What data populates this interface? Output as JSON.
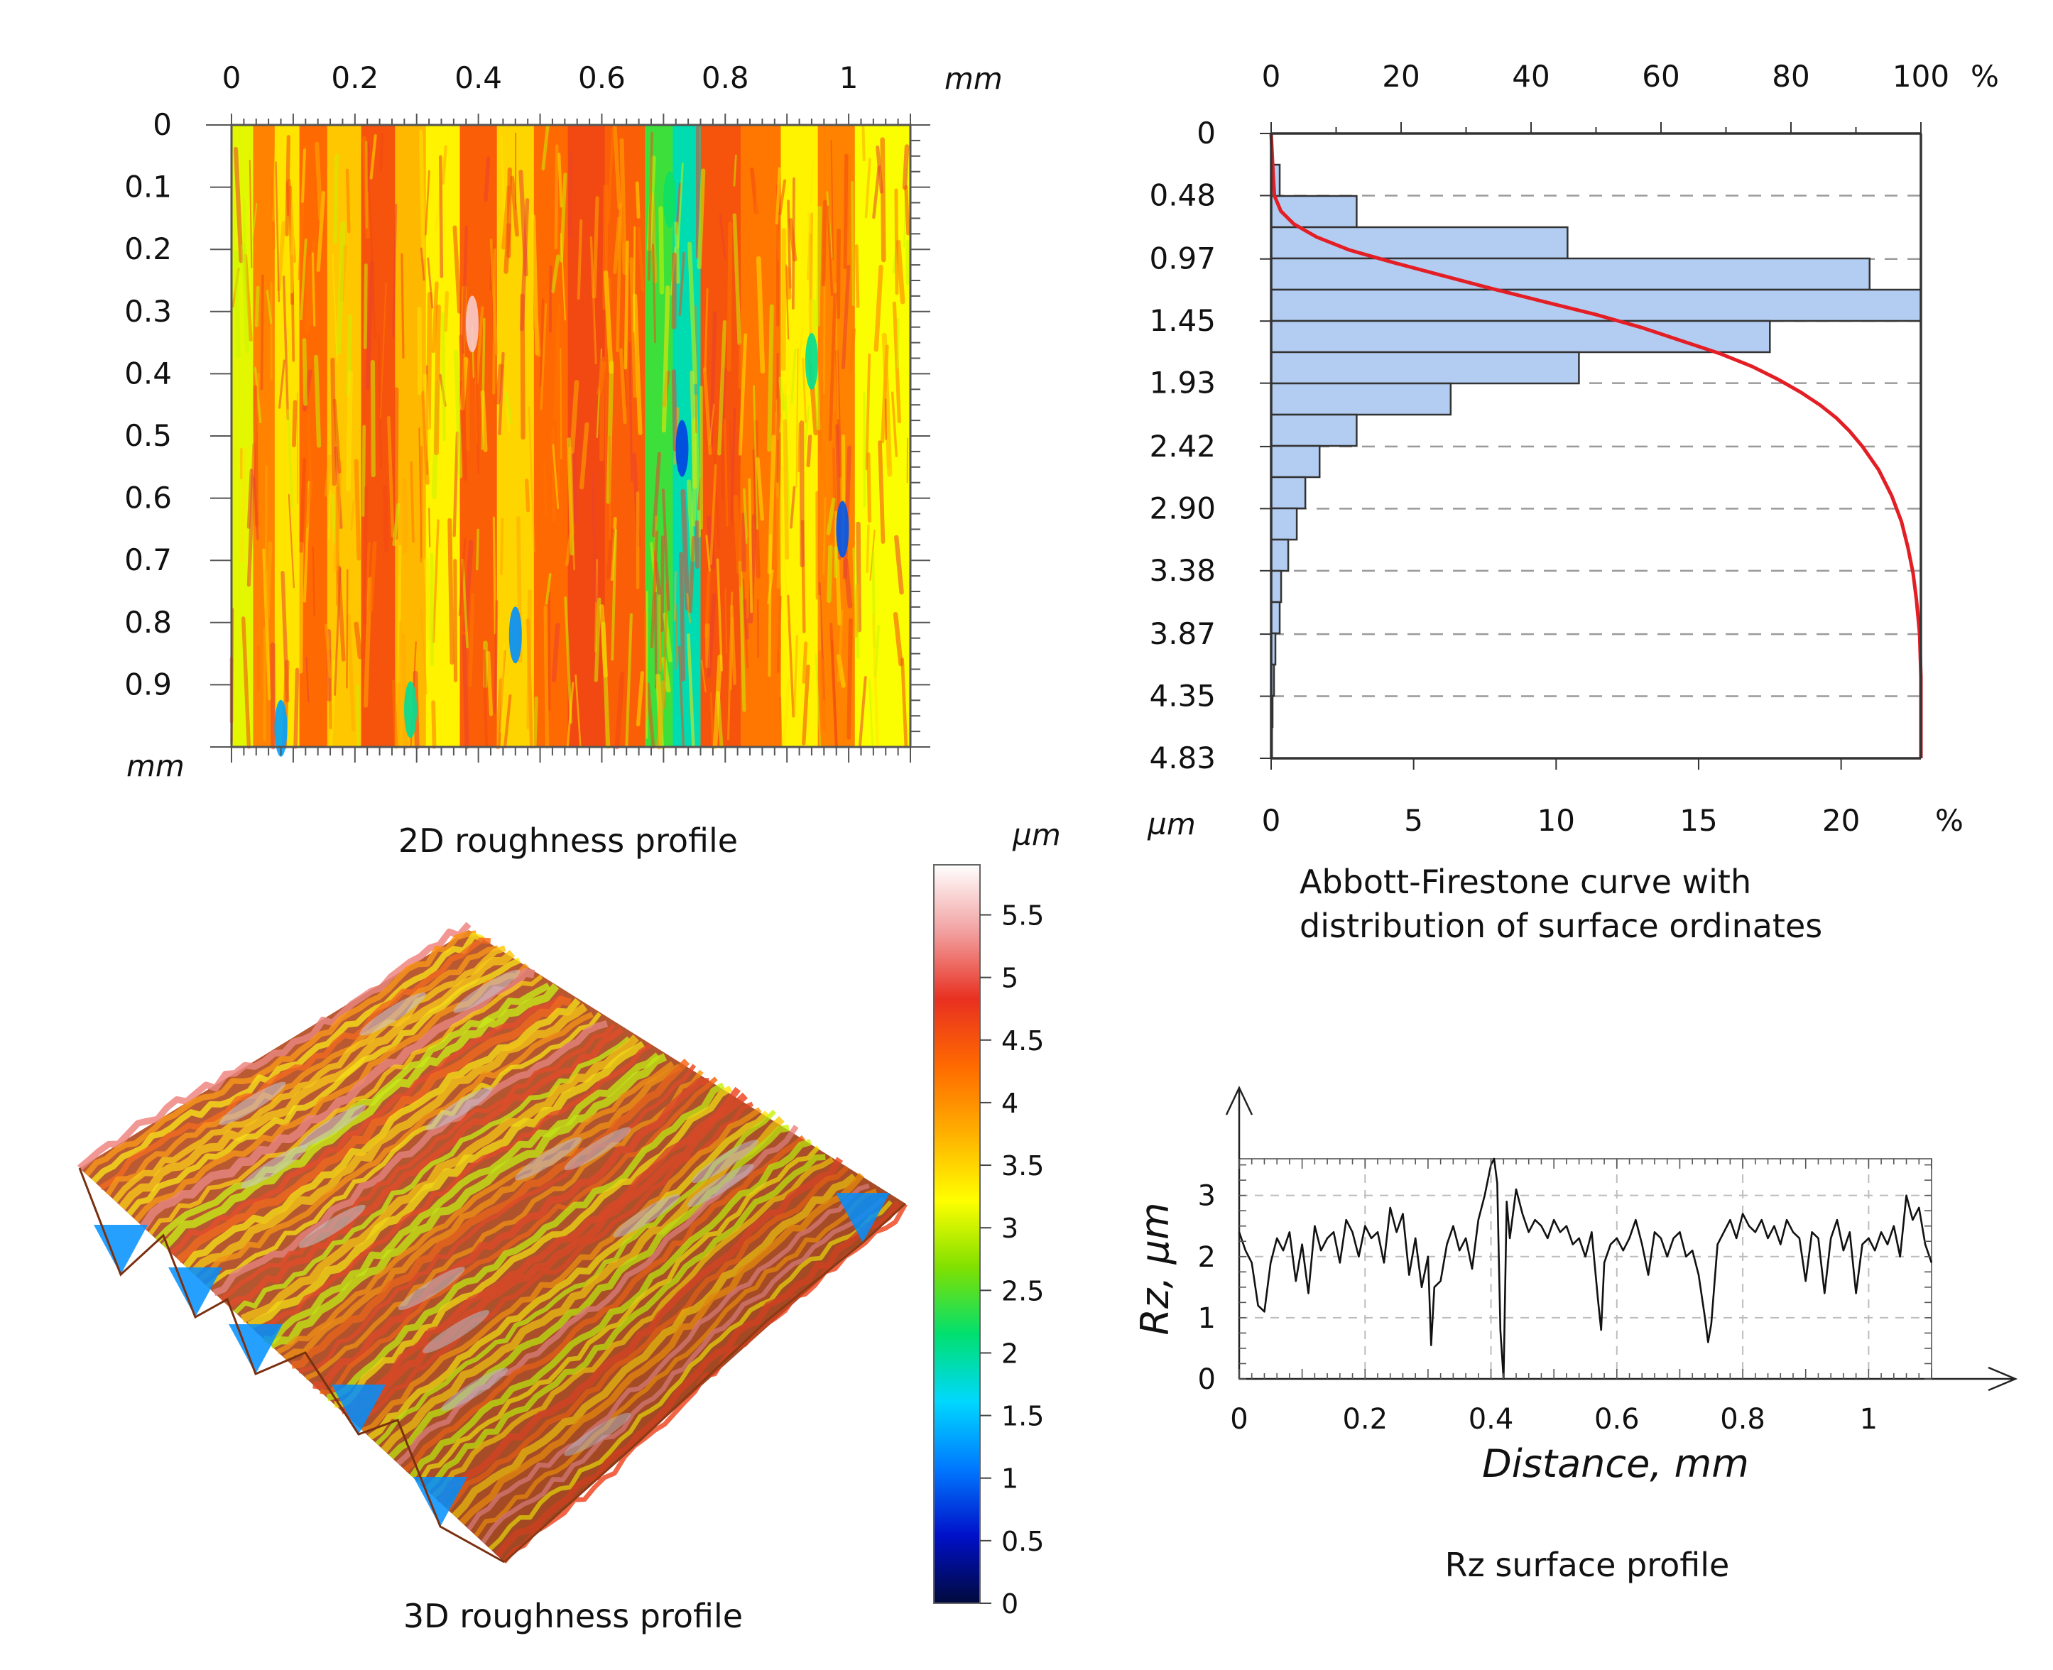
{
  "panels": {
    "map2d": {
      "caption": "2D roughness profile"
    },
    "surf3d": {
      "caption": "3D roughness profile"
    },
    "abbott": {
      "caption_line1": "Abbott-Firestone curve with",
      "caption_line2": "distribution of surface ordinates"
    },
    "rz": {
      "caption": "Rz surface profile"
    }
  },
  "colormap": {
    "stops": [
      "#000a3c",
      "#0010c8",
      "#0078ff",
      "#00d8ff",
      "#00e070",
      "#80e000",
      "#ffff00",
      "#ffb000",
      "#ff6a00",
      "#e83020",
      "#f2a0a0",
      "#ffffff"
    ],
    "background_hex": "#f06422"
  },
  "chart_data": [
    {
      "id": "map2d",
      "type": "heatmap",
      "title": "2D roughness profile",
      "x_unit": "mm",
      "y_unit": "mm",
      "x_range": [
        0,
        1.1
      ],
      "y_range": [
        0,
        1.0
      ],
      "x_ticks": [
        "0",
        "0.2",
        "0.4",
        "0.6",
        "0.8",
        "1"
      ],
      "x_tick_values": [
        0,
        0.2,
        0.4,
        0.6,
        0.8,
        1.0
      ],
      "y_ticks": [
        "0",
        "0.1",
        "0.2",
        "0.3",
        "0.4",
        "0.5",
        "0.6",
        "0.7",
        "0.8",
        "0.9"
      ],
      "y_tick_values": [
        0,
        0.1,
        0.2,
        0.3,
        0.4,
        0.5,
        0.6,
        0.7,
        0.8,
        0.9
      ],
      "z_unit": "µm",
      "z_range": [
        0,
        5.9
      ],
      "colorbar_ticks": [
        "0",
        "0.5",
        "1",
        "1.5",
        "2",
        "2.5",
        "3",
        "3.5",
        "4",
        "4.5",
        "5",
        "5.5"
      ],
      "colorbar_values": [
        0,
        0.5,
        1,
        1.5,
        2,
        2.5,
        3,
        3.5,
        4,
        4.5,
        5,
        5.5
      ],
      "bands": [
        {
          "x": 0.02,
          "z": 3.1
        },
        {
          "x": 0.05,
          "z": 4.1
        },
        {
          "x": 0.09,
          "z": 3.4
        },
        {
          "x": 0.13,
          "z": 4.3
        },
        {
          "x": 0.18,
          "z": 3.6
        },
        {
          "x": 0.24,
          "z": 4.5
        },
        {
          "x": 0.29,
          "z": 3.7
        },
        {
          "x": 0.34,
          "z": 3.3
        },
        {
          "x": 0.4,
          "z": 4.4
        },
        {
          "x": 0.46,
          "z": 3.5
        },
        {
          "x": 0.52,
          "z": 4.3
        },
        {
          "x": 0.57,
          "z": 4.6
        },
        {
          "x": 0.64,
          "z": 4.4
        },
        {
          "x": 0.7,
          "z": 2.4
        },
        {
          "x": 0.73,
          "z": 1.9
        },
        {
          "x": 0.79,
          "z": 4.5
        },
        {
          "x": 0.86,
          "z": 4.2
        },
        {
          "x": 0.92,
          "z": 3.3
        },
        {
          "x": 0.98,
          "z": 4.1
        },
        {
          "x": 1.04,
          "z": 3.2
        }
      ],
      "pits": [
        {
          "x": 0.73,
          "y": 0.52,
          "z": 0.8
        },
        {
          "x": 0.99,
          "y": 0.65,
          "z": 0.9
        },
        {
          "x": 0.46,
          "y": 0.82,
          "z": 1.2
        },
        {
          "x": 0.08,
          "y": 0.97,
          "z": 1.3
        },
        {
          "x": 0.29,
          "y": 0.94,
          "z": 2.0
        },
        {
          "x": 0.39,
          "y": 0.32,
          "z": 5.6
        },
        {
          "x": 0.71,
          "y": 0.12,
          "z": 2.2
        },
        {
          "x": 0.94,
          "y": 0.38,
          "z": 2.0
        }
      ]
    },
    {
      "id": "surf3d",
      "type": "heatmap",
      "title": "3D roughness profile",
      "z_unit": "µm",
      "colorbar_ticks": [
        "0",
        "0.5",
        "1",
        "1.5",
        "2",
        "2.5",
        "3",
        "3.5",
        "4",
        "4.5",
        "5",
        "5.5"
      ],
      "colorbar_values": [
        0,
        0.5,
        1,
        1.5,
        2,
        2.5,
        3,
        3.5,
        4,
        4.5,
        5,
        5.5
      ],
      "z_range": [
        0,
        5.9
      ]
    },
    {
      "id": "abbott",
      "type": "bar",
      "orientation": "horizontal",
      "title": "Abbott-Firestone curve with distribution of surface ordinates",
      "ylabel": "µm",
      "y_ticks": [
        "0",
        "0.48",
        "0.97",
        "1.45",
        "1.93",
        "2.42",
        "2.90",
        "3.38",
        "3.87",
        "4.35",
        "4.83"
      ],
      "y_tick_values": [
        0,
        0.48,
        0.97,
        1.45,
        1.93,
        2.42,
        2.9,
        3.38,
        3.87,
        4.35,
        4.83
      ],
      "ylim": [
        0,
        4.83
      ],
      "bottom_axis_unit": "%",
      "bottom_ticks": [
        "0",
        "5",
        "10",
        "15",
        "20"
      ],
      "bottom_tick_values": [
        0,
        5,
        10,
        15,
        20
      ],
      "bottom_range": [
        0,
        22.8
      ],
      "top_axis_unit": "%",
      "top_ticks": [
        "0",
        "20",
        "40",
        "60",
        "80",
        "100"
      ],
      "top_tick_values": [
        0,
        20,
        40,
        60,
        80,
        100
      ],
      "top_range": [
        0,
        100
      ],
      "bin_width": 0.2415,
      "bins_start": [
        0.2415,
        0.483,
        0.7245,
        0.966,
        1.2075,
        1.449,
        1.6905,
        1.932,
        2.1735,
        2.415,
        2.6565,
        2.898,
        3.1395,
        3.381,
        3.6225,
        3.864,
        4.1055,
        4.347,
        4.5885
      ],
      "values": [
        0.3,
        3.0,
        10.4,
        21.0,
        22.8,
        17.5,
        10.8,
        6.3,
        3.0,
        1.7,
        1.2,
        0.9,
        0.6,
        0.35,
        0.3,
        0.15,
        0.1,
        0.05,
        0.03
      ],
      "curve_name": "Abbott-Firestone curve",
      "curve_color": "#e31e24",
      "bar_color": "#b3cdf2",
      "curve": {
        "depth": [
          0,
          0.3,
          0.48,
          0.6,
          0.7,
          0.8,
          0.9,
          1.0,
          1.1,
          1.2,
          1.3,
          1.4,
          1.5,
          1.6,
          1.7,
          1.8,
          1.9,
          2.0,
          2.1,
          2.2,
          2.3,
          2.42,
          2.6,
          2.8,
          3.0,
          3.2,
          3.4,
          3.6,
          3.87,
          4.2,
          4.5,
          4.83
        ],
        "percent": [
          0,
          0.3,
          0.5,
          1.5,
          3.5,
          7,
          12,
          19,
          26.5,
          34,
          42,
          50,
          57,
          63,
          69,
          74,
          78,
          81.5,
          84.5,
          87,
          89,
          91,
          93.5,
          95.5,
          97,
          98,
          98.8,
          99.3,
          99.8,
          100,
          100,
          100
        ]
      }
    },
    {
      "id": "rz",
      "type": "line",
      "title": "Rz surface profile",
      "xlabel": "Distance, mm",
      "ylabel": "Rz, μm",
      "xlim": [
        0,
        1.1
      ],
      "ylim": [
        0,
        3.6
      ],
      "x_ticks": [
        "0",
        "0.2",
        "0.4",
        "0.6",
        "0.8",
        "1"
      ],
      "x_tick_values": [
        0,
        0.2,
        0.4,
        0.6,
        0.8,
        1.0
      ],
      "y_ticks": [
        "0",
        "1",
        "2",
        "3"
      ],
      "y_tick_values": [
        0,
        1,
        2,
        3
      ],
      "grid": true,
      "series": [
        {
          "name": "Rz",
          "x": [
            0.0,
            0.01,
            0.02,
            0.03,
            0.04,
            0.05,
            0.06,
            0.07,
            0.08,
            0.09,
            0.1,
            0.11,
            0.12,
            0.13,
            0.14,
            0.15,
            0.16,
            0.17,
            0.18,
            0.19,
            0.2,
            0.21,
            0.22,
            0.23,
            0.24,
            0.25,
            0.26,
            0.27,
            0.28,
            0.29,
            0.3,
            0.305,
            0.31,
            0.32,
            0.33,
            0.34,
            0.35,
            0.36,
            0.37,
            0.38,
            0.39,
            0.4,
            0.405,
            0.41,
            0.415,
            0.42,
            0.425,
            0.43,
            0.44,
            0.45,
            0.46,
            0.47,
            0.48,
            0.49,
            0.5,
            0.51,
            0.52,
            0.53,
            0.54,
            0.55,
            0.56,
            0.57,
            0.575,
            0.58,
            0.59,
            0.6,
            0.61,
            0.62,
            0.63,
            0.64,
            0.65,
            0.66,
            0.67,
            0.68,
            0.69,
            0.7,
            0.71,
            0.72,
            0.73,
            0.74,
            0.745,
            0.75,
            0.76,
            0.77,
            0.78,
            0.79,
            0.8,
            0.81,
            0.82,
            0.83,
            0.84,
            0.85,
            0.86,
            0.87,
            0.88,
            0.89,
            0.9,
            0.91,
            0.92,
            0.93,
            0.94,
            0.95,
            0.96,
            0.97,
            0.98,
            0.99,
            1.0,
            1.01,
            1.02,
            1.03,
            1.04,
            1.05,
            1.06,
            1.07,
            1.08,
            1.09,
            1.1
          ],
          "y": [
            2.4,
            2.1,
            1.9,
            1.2,
            1.1,
            1.9,
            2.3,
            2.1,
            2.4,
            1.6,
            2.2,
            1.4,
            2.5,
            2.1,
            2.3,
            2.4,
            1.9,
            2.6,
            2.4,
            2.0,
            2.5,
            2.3,
            2.4,
            1.9,
            2.8,
            2.4,
            2.7,
            1.7,
            2.3,
            1.5,
            2.0,
            0.55,
            1.5,
            1.6,
            2.2,
            2.5,
            2.1,
            2.3,
            1.8,
            2.6,
            3.0,
            3.5,
            3.6,
            3.2,
            0.8,
            0.0,
            2.9,
            2.3,
            3.1,
            2.7,
            2.4,
            2.6,
            2.5,
            2.3,
            2.6,
            2.4,
            2.5,
            2.2,
            2.3,
            2.0,
            2.4,
            1.3,
            0.8,
            1.9,
            2.2,
            2.3,
            2.1,
            2.3,
            2.6,
            2.2,
            1.7,
            2.4,
            2.3,
            2.0,
            2.3,
            2.4,
            2.0,
            2.1,
            1.7,
            1.0,
            0.6,
            0.9,
            2.2,
            2.4,
            2.6,
            2.3,
            2.7,
            2.5,
            2.4,
            2.6,
            2.3,
            2.5,
            2.2,
            2.6,
            2.4,
            2.3,
            1.6,
            2.4,
            2.3,
            1.4,
            2.3,
            2.6,
            2.1,
            2.4,
            1.4,
            2.2,
            2.3,
            2.1,
            2.4,
            2.2,
            2.5,
            2.0,
            3.0,
            2.6,
            2.8,
            2.2,
            1.9
          ],
          "color": "#111111"
        }
      ]
    }
  ]
}
